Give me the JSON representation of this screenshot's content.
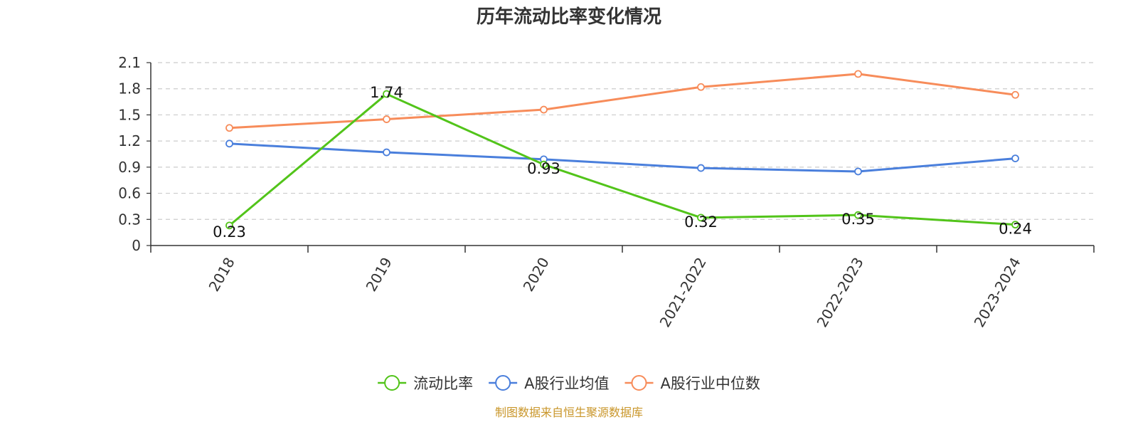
{
  "chart_data": {
    "type": "line",
    "title": "历年流动比率变化情况",
    "categories": [
      "2018",
      "2019",
      "2020",
      "2021-2022",
      "2022-2023",
      "2023-2024"
    ],
    "ylim": [
      0,
      2.1
    ],
    "yticks": [
      "0",
      "0.3",
      "0.6",
      "0.9",
      "1.2",
      "1.5",
      "1.8",
      "2.1"
    ],
    "grid": true,
    "legend_position": "bottom",
    "series": [
      {
        "name": "流动比率",
        "color": "#52c41a",
        "values": [
          0.23,
          1.74,
          0.93,
          0.32,
          0.35,
          0.24
        ],
        "labels": [
          "0.23",
          "1.74",
          "0.93",
          "0.32",
          "0.35",
          "0.24"
        ]
      },
      {
        "name": "A股行业均值",
        "color": "#4a7fdc",
        "values": [
          1.17,
          1.07,
          0.99,
          0.89,
          0.85,
          1.0
        ]
      },
      {
        "name": "A股行业中位数",
        "color": "#f78c5a",
        "values": [
          1.35,
          1.45,
          1.56,
          1.82,
          1.97,
          1.73
        ]
      }
    ]
  },
  "footer": {
    "source": "制图数据来自恒生聚源数据库"
  }
}
